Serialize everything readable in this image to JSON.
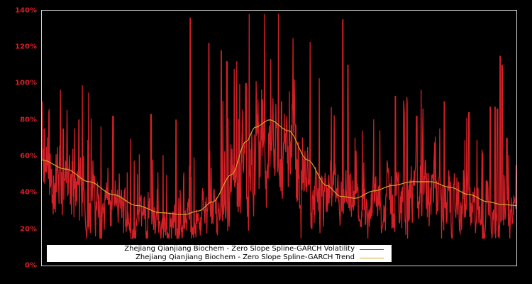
{
  "chart_data": {
    "type": "line",
    "title": "",
    "xlabel": "",
    "ylabel": "",
    "y_tick_labels": [
      "0%",
      "20%",
      "40%",
      "60%",
      "80%",
      "100%",
      "120%",
      "140%"
    ],
    "y_ticks": [
      0,
      20,
      40,
      60,
      80,
      100,
      120,
      140
    ],
    "ylim": [
      0,
      140
    ],
    "grid": false,
    "legend_position": "lower left",
    "series": [
      {
        "name": "Zhejiang Qianjiang Biochem - Zero Slope Spline-GARCH Volatility",
        "color": "#d42027",
        "notes": "noisy daily conditional volatility; notable spikes approx 136% (~x 31%), 135% (~x 63%), 115% (~x 96%)",
        "x_fraction": [
          0.0,
          0.02,
          0.05,
          0.08,
          0.1,
          0.15,
          0.2,
          0.25,
          0.3,
          0.33,
          0.35,
          0.38,
          0.4,
          0.42,
          0.45,
          0.48,
          0.5,
          0.55,
          0.6,
          0.63,
          0.65,
          0.7,
          0.75,
          0.8,
          0.85,
          0.9,
          0.96,
          1.0
        ],
        "values": [
          90,
          45,
          70,
          40,
          55,
          35,
          30,
          22,
          20,
          22,
          136,
          90,
          100,
          70,
          55,
          40,
          35,
          28,
          40,
          135,
          55,
          45,
          80,
          38,
          30,
          85,
          115,
          55
        ]
      },
      {
        "name": "Zhejiang Qianjiang Biochem - Zero Slope Spline-GARCH Trend",
        "color": "#d4a92a",
        "x_fraction": [
          0.0,
          0.05,
          0.1,
          0.15,
          0.2,
          0.25,
          0.3,
          0.33,
          0.36,
          0.4,
          0.43,
          0.45,
          0.48,
          0.52,
          0.56,
          0.6,
          0.63,
          0.66,
          0.7,
          0.74,
          0.78,
          0.82,
          0.86,
          0.9,
          0.94,
          0.97,
          1.0
        ],
        "values": [
          58,
          53,
          46,
          39,
          33,
          29,
          28,
          30,
          35,
          50,
          68,
          76,
          80,
          74,
          58,
          44,
          38,
          37,
          41,
          44,
          46,
          46,
          43,
          39,
          35,
          33.5,
          33
        ]
      }
    ]
  },
  "legend": {
    "volatility_label": "Zhejiang Qianjiang Biochem - Zero Slope Spline-GARCH Volatility",
    "trend_label": "Zhejiang Qianjiang Biochem - Zero Slope Spline-GARCH Trend"
  },
  "axis": {
    "ticks": [
      {
        "label": "140%",
        "value": 140
      },
      {
        "label": "120%",
        "value": 120
      },
      {
        "label": "100%",
        "value": 100
      },
      {
        "label": "80%",
        "value": 80
      },
      {
        "label": "60%",
        "value": 60
      },
      {
        "label": "40%",
        "value": 40
      },
      {
        "label": "20%",
        "value": 20
      },
      {
        "label": "0%",
        "value": 0
      }
    ]
  },
  "colors": {
    "background": "#000000",
    "frame": "#cccccc",
    "volatility": "#d42027",
    "trend": "#d4a92a",
    "tick_label": "#d42027"
  }
}
